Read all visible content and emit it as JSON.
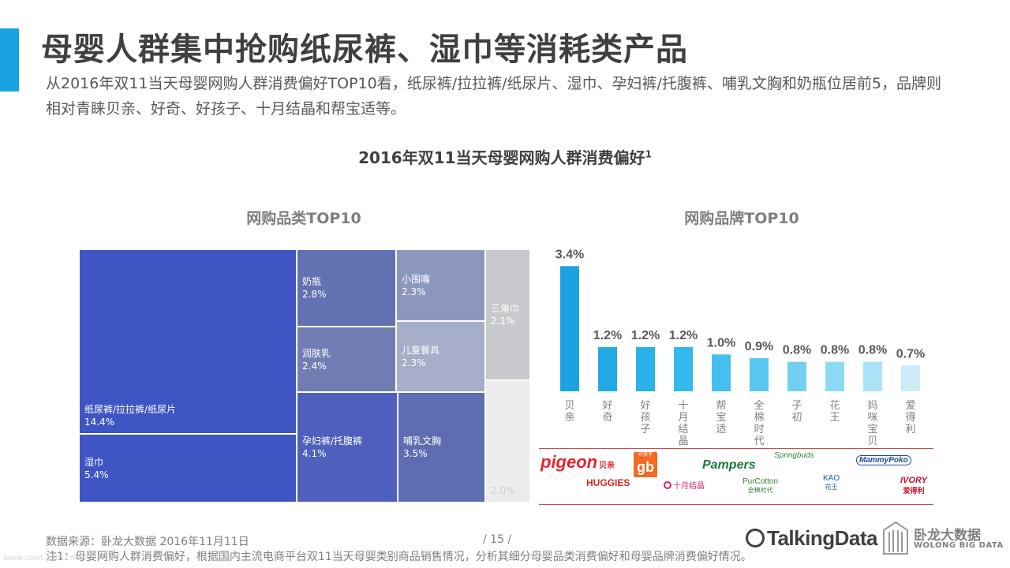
{
  "title": "母婴人群集中抢购纸尿裤、湿巾等消耗类产品",
  "subtitle": "从2016年双11当天母婴网购人群消费偏好TOP10看，纸尿裤/拉拉裤/纸尿片、湿巾、孕妇裤/托腹裤、哺乳文胸和奶瓶位居前5，品牌则相对青睐贝亲、好奇、好孩子、十月结晶和帮宝适等。",
  "chart_title": "2016年双11当天母婴网购人群消费偏好",
  "chart_title_sup": "1",
  "treemap": {
    "title": "网购品类TOP10",
    "cells": [
      {
        "label": "纸尿裤/拉拉裤/纸尿片",
        "value": "14.4%",
        "color": "#3f55c4"
      },
      {
        "label": "湿巾",
        "value": "5.4%",
        "color": "#3f55c4"
      },
      {
        "label": "奶瓶",
        "value": "2.8%",
        "color": "#6271b1"
      },
      {
        "label": "润肤乳",
        "value": "2.4%",
        "color": "#707eb4"
      },
      {
        "label": "孕妇裤/托腹裤",
        "value": "4.1%",
        "color": "#4e60bb"
      },
      {
        "label": "小围嘴",
        "value": "2.3%",
        "color": "#8d97be"
      },
      {
        "label": "儿童餐具",
        "value": "2.3%",
        "color": "#a6aec9"
      },
      {
        "label": "哺乳文胸",
        "value": "3.5%",
        "color": "#5e6cb2"
      },
      {
        "label": "三角巾",
        "value": "2.1%",
        "color": "#c8c9cc"
      }
    ],
    "ghost_label": "2.0%"
  },
  "chart_data": {
    "type": "bar",
    "title": "网购品牌TOP10",
    "categories": [
      "贝亲",
      "好奇",
      "好孩子",
      "十月结晶",
      "帮宝适",
      "全棉时代",
      "子初",
      "花王",
      "妈咪宝贝",
      "爱得利"
    ],
    "values": [
      3.4,
      1.2,
      1.2,
      1.2,
      1.0,
      0.9,
      0.8,
      0.8,
      0.8,
      0.7
    ],
    "value_labels": [
      "3.4%",
      "1.2%",
      "1.2%",
      "1.2%",
      "1.0%",
      "0.9%",
      "0.8%",
      "0.8%",
      "0.8%",
      "0.7%"
    ],
    "colors": [
      "#1aa3e0",
      "#22aae4",
      "#2ab1e8",
      "#33b8ec",
      "#45c0ee",
      "#58c6ef",
      "#72cff2",
      "#8ed9f4",
      "#acE2f7",
      "#caedf9"
    ],
    "ylim": [
      0,
      3.6
    ],
    "grid": false,
    "legend": "none"
  },
  "brand_logos": {
    "pigeon": "pigeon",
    "pigeon_cn": "贝亲",
    "haohaizi_top": "好孩子",
    "haohaizi": "gb",
    "pampers": "Pampers",
    "springbuds": "Springbuds",
    "mammy": "MammyPoko",
    "huggies": "HUGGIES",
    "shiyue": "十月结晶",
    "purcotton": "PurCotton",
    "purcotton_cn": "全棉时代",
    "kao": "KAO",
    "kao_cn": "花王",
    "ivory": "IVORY",
    "ivory_cn": "爱得利"
  },
  "footer": {
    "source": "数据来源：卧龙大数据  2016年11月11日",
    "note": "注1：母婴网购人群消费偏好，根据国内主流电商平台双11当天母婴类别商品销售情况，分析其细分母婴品类消费偏好和母婴品牌消费偏好情况。",
    "page": "/  15  /",
    "talkingdata": "TalkingData",
    "wolong_cn": "卧龙大数据",
    "wolong_en": "WOLONG BIG DATA"
  },
  "watermark": "www.useit.com.cn"
}
